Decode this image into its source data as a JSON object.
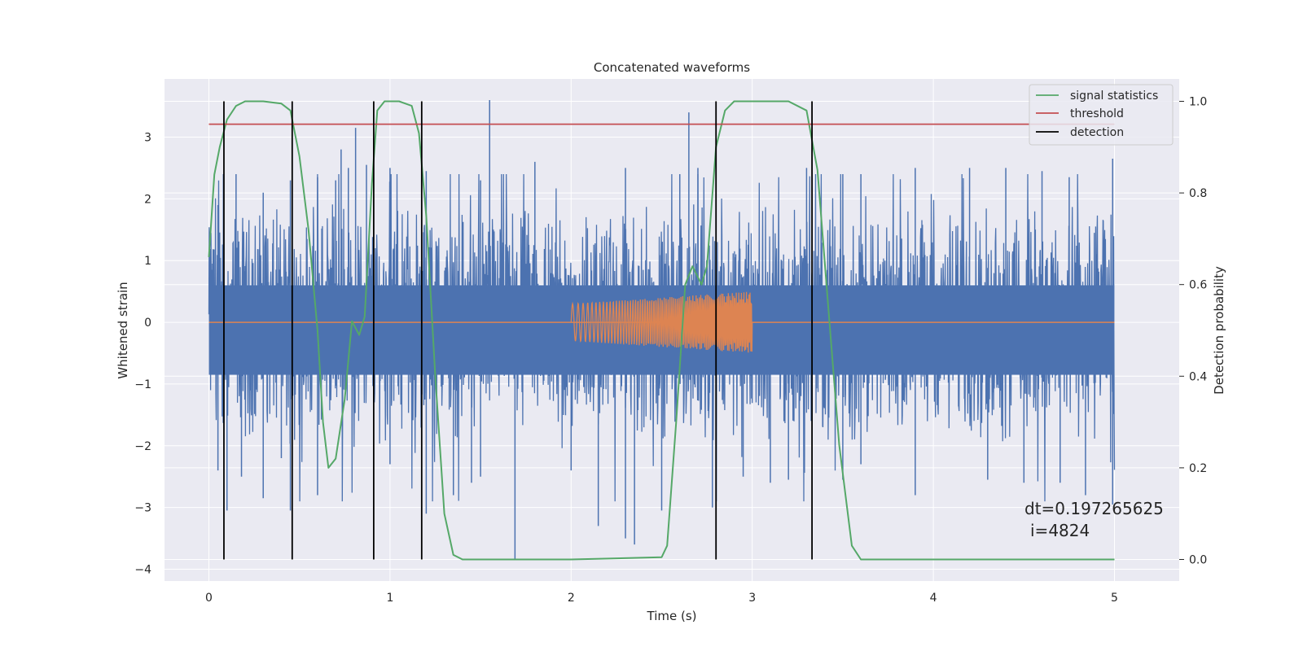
{
  "chart_data": {
    "type": "line",
    "title": "Concatenated waveforms",
    "xlabel": "Time (s)",
    "ylabel": "Whitened strain",
    "y2label": "Detection probability",
    "xlim": [
      -0.25,
      5.35
    ],
    "ylim": [
      -4.2,
      3.95
    ],
    "y2lim": [
      -0.045,
      1.04
    ],
    "x_ticks": [
      0,
      1,
      2,
      3,
      4,
      5
    ],
    "y_ticks": [
      -4,
      -3,
      -2,
      -1,
      0,
      1,
      2,
      3
    ],
    "y2_ticks": [
      0.0,
      0.2,
      0.4,
      0.6,
      0.8,
      1.0
    ],
    "y2_tick_labels": [
      "0.0",
      "0.2",
      "0.4",
      "0.6",
      "0.8",
      "1.0"
    ],
    "grid": true,
    "legend_position": "top-right",
    "colors": {
      "background": "#eaeaf2",
      "grid": "#ffffff",
      "strain": "#4c72b0",
      "injection": "#dd8452",
      "signal_statistics": "#55a868",
      "threshold": "#c44e52",
      "detection": "#000000"
    },
    "series": [
      {
        "name": "strain",
        "axis": "left",
        "x_range": [
          0,
          5
        ],
        "noise_band": [
          -0.85,
          0.6
        ],
        "peaks_up": [
          [
            0.02,
            0.95
          ],
          [
            0.05,
            1.9
          ],
          [
            0.08,
            2.4
          ],
          [
            0.15,
            2.4
          ],
          [
            0.3,
            2.1
          ],
          [
            0.45,
            2.3
          ],
          [
            0.6,
            2.35
          ],
          [
            0.7,
            2.3
          ],
          [
            0.73,
            2.8
          ],
          [
            0.77,
            2.5
          ],
          [
            0.81,
            3.15
          ],
          [
            0.87,
            2.55
          ],
          [
            1.0,
            2.5
          ],
          [
            1.2,
            2.45
          ],
          [
            1.5,
            2.3
          ],
          [
            1.55,
            3.6
          ],
          [
            1.8,
            2.6
          ],
          [
            2.3,
            2.5
          ],
          [
            2.6,
            2.4
          ],
          [
            2.65,
            3.4
          ],
          [
            2.7,
            2.5
          ],
          [
            3.3,
            2.5
          ],
          [
            3.5,
            2.4
          ],
          [
            3.6,
            2.4
          ],
          [
            3.9,
            2.5
          ],
          [
            4.2,
            2.5
          ],
          [
            4.4,
            2.5
          ],
          [
            4.6,
            2.45
          ],
          [
            4.75,
            2.35
          ],
          [
            4.99,
            2.65
          ]
        ],
        "peaks_down": [
          [
            0.05,
            -2.4
          ],
          [
            0.1,
            -3.05
          ],
          [
            0.18,
            -2.5
          ],
          [
            0.3,
            -2.85
          ],
          [
            0.4,
            -2.2
          ],
          [
            0.45,
            -3.05
          ],
          [
            0.6,
            -2.8
          ],
          [
            1.0,
            -2.3
          ],
          [
            1.2,
            -3.1
          ],
          [
            1.35,
            -2.8
          ],
          [
            1.45,
            -2.6
          ],
          [
            1.5,
            -2.5
          ],
          [
            1.69,
            -3.85
          ],
          [
            2.0,
            -2.4
          ],
          [
            2.15,
            -3.3
          ],
          [
            2.3,
            -3.5
          ],
          [
            2.35,
            -3.6
          ],
          [
            2.5,
            -3.05
          ],
          [
            2.78,
            -3.0
          ],
          [
            2.95,
            -2.5
          ],
          [
            3.1,
            -2.6
          ],
          [
            3.2,
            -2.55
          ],
          [
            3.5,
            -2.55
          ],
          [
            3.6,
            -2.3
          ],
          [
            3.9,
            -2.8
          ],
          [
            4.3,
            -2.55
          ],
          [
            4.5,
            -2.6
          ],
          [
            4.7,
            -2.6
          ],
          [
            4.84,
            -2.8
          ],
          [
            4.99,
            -2.95
          ]
        ]
      },
      {
        "name": "injection",
        "axis": "left",
        "x_range": [
          2.0,
          3.0
        ],
        "amplitude_start": 0.3,
        "amplitude_end": 0.5,
        "baseline_x": [
          0,
          5
        ],
        "baseline_y": 0
      },
      {
        "name": "signal statistics",
        "axis": "right",
        "x": [
          0.0,
          0.03,
          0.06,
          0.1,
          0.15,
          0.2,
          0.3,
          0.4,
          0.45,
          0.5,
          0.55,
          0.6,
          0.63,
          0.66,
          0.7,
          0.75,
          0.79,
          0.83,
          0.86,
          0.9,
          0.93,
          0.97,
          1.05,
          1.12,
          1.16,
          1.2,
          1.25,
          1.3,
          1.35,
          1.4,
          2.0,
          2.5,
          2.53,
          2.58,
          2.63,
          2.67,
          2.72,
          2.75,
          2.8,
          2.85,
          2.9,
          3.0,
          3.2,
          3.3,
          3.36,
          3.42,
          3.48,
          3.55,
          3.6,
          5.0
        ],
        "y": [
          0.66,
          0.84,
          0.9,
          0.96,
          0.99,
          1.0,
          1.0,
          0.995,
          0.98,
          0.88,
          0.72,
          0.5,
          0.3,
          0.2,
          0.22,
          0.35,
          0.52,
          0.49,
          0.53,
          0.82,
          0.98,
          1.0,
          1.0,
          0.99,
          0.93,
          0.75,
          0.4,
          0.1,
          0.01,
          0.0,
          0.0,
          0.005,
          0.03,
          0.3,
          0.6,
          0.64,
          0.6,
          0.64,
          0.9,
          0.98,
          1.0,
          1.0,
          1.0,
          0.98,
          0.85,
          0.55,
          0.25,
          0.03,
          0.0,
          0.0
        ]
      },
      {
        "name": "threshold",
        "axis": "right",
        "x": [
          0,
          5
        ],
        "y": [
          0.95,
          0.95
        ]
      },
      {
        "name": "detection",
        "axis": "right",
        "x_values": [
          0.083,
          0.46,
          0.91,
          1.175,
          2.8,
          3.33
        ],
        "y_range": [
          0.0,
          1.0
        ]
      }
    ],
    "legend": [
      "signal statistics",
      "threshold",
      "detection"
    ],
    "annotations": [
      "dt=0.197265625",
      "i=4824"
    ]
  }
}
